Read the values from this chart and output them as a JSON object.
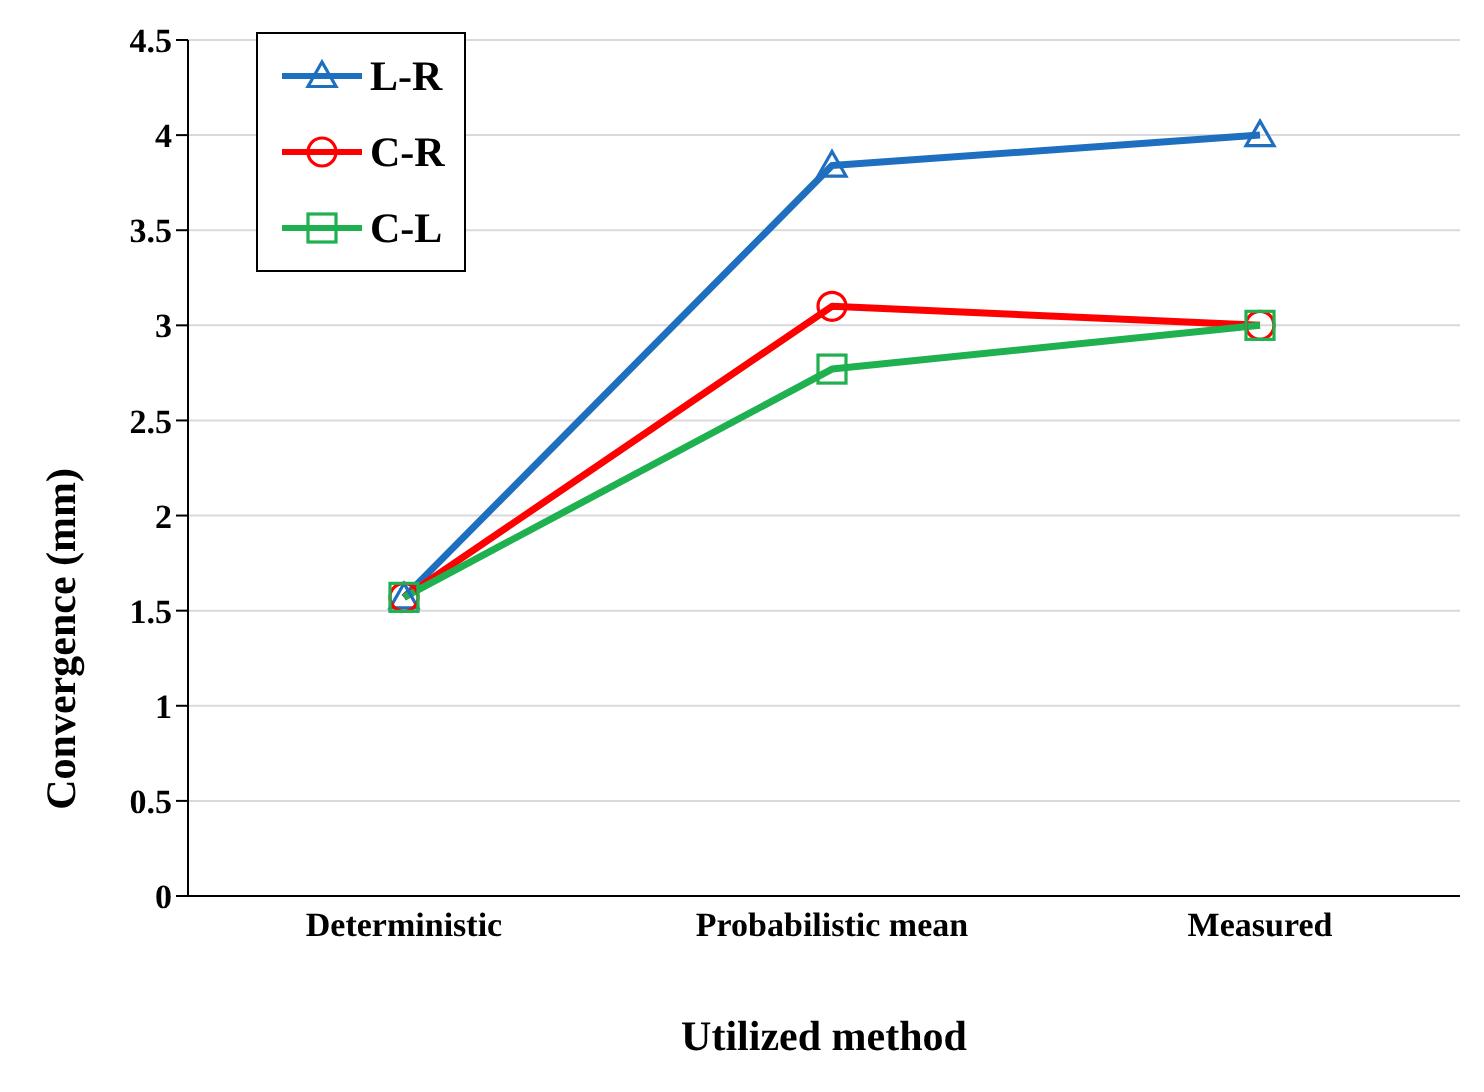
{
  "chart_data": {
    "type": "line",
    "xlabel": "Utilized method",
    "ylabel": "Convergence (mm)",
    "categories": [
      "Deterministic",
      "Probabilistic mean",
      "Measured"
    ],
    "series": [
      {
        "name": "L-R",
        "color": "#1f6fc0",
        "marker": "triangle",
        "values": [
          1.57,
          3.84,
          4.0
        ]
      },
      {
        "name": "C-R",
        "color": "#ff0000",
        "marker": "circle",
        "values": [
          1.57,
          3.1,
          3.0
        ]
      },
      {
        "name": "C-L",
        "color": "#1fb050",
        "marker": "square",
        "values": [
          1.57,
          2.77,
          3.0
        ]
      }
    ],
    "ylim": [
      0,
      4.5
    ],
    "yticks": [
      0,
      0.5,
      1,
      1.5,
      2,
      2.5,
      3,
      3.5,
      4,
      4.5
    ],
    "grid": "y",
    "legend": "top left",
    "line_style": "solid"
  }
}
